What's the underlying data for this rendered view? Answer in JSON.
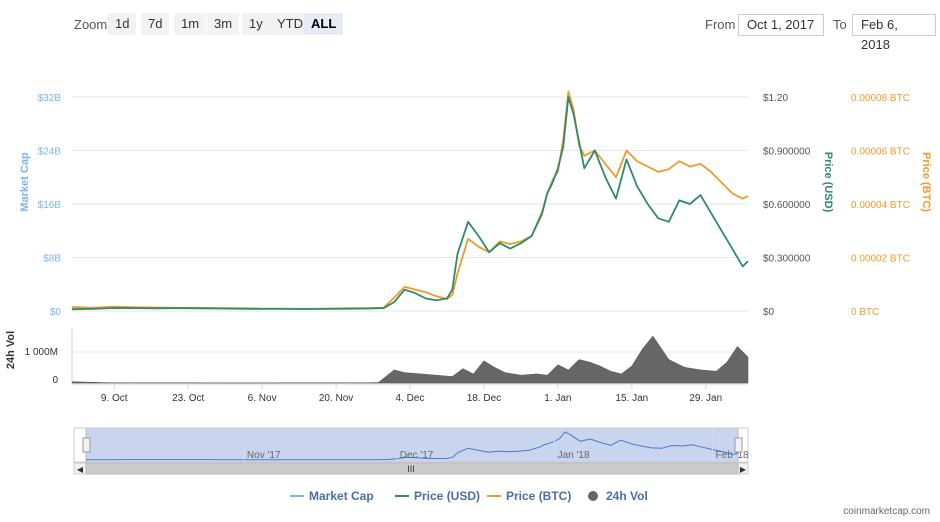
{
  "toolbar": {
    "zoom_label": "Zoom",
    "zoom_buttons": [
      "1d",
      "7d",
      "1m",
      "3m",
      "1y",
      "YTD",
      "ALL"
    ],
    "active_zoom": "ALL",
    "from_label": "From",
    "from_value": "Oct 1, 2017",
    "to_label": "To",
    "to_value": "Feb 6, 2018"
  },
  "credit": "coinmarketcap.com",
  "colors": {
    "market_cap": "#7cb5ec",
    "price_usd": "#2f8a6b",
    "price_btc": "#f09a2a",
    "volume": "#666666",
    "navigator_fill": "#c9d5ee"
  },
  "chart_data": {
    "type": "line",
    "x_range": [
      "2017-10-01",
      "2018-02-06"
    ],
    "x_tick_labels": [
      "9. Oct",
      "23. Oct",
      "6. Nov",
      "20. Nov",
      "4. Dec",
      "18. Dec",
      "1. Jan",
      "15. Jan",
      "29. Jan"
    ],
    "x_tick_dates": [
      "2017-10-09",
      "2017-10-23",
      "2017-11-06",
      "2017-11-20",
      "2017-12-04",
      "2017-12-18",
      "2018-01-01",
      "2018-01-15",
      "2018-01-29"
    ],
    "axes": {
      "market_cap": {
        "label": "Market Cap",
        "ticks": [
          "$0",
          "$8B",
          "$16B",
          "$24B",
          "$32B"
        ],
        "range": [
          0,
          32000000000
        ]
      },
      "price_usd": {
        "label": "Price (USD)",
        "ticks": [
          "$0",
          "$0.300000",
          "$0.600000",
          "$0.900000",
          "$1.20"
        ],
        "range": [
          0,
          1.2
        ]
      },
      "price_btc": {
        "label": "Price (BTC)",
        "ticks": [
          "0 BTC",
          "0.00002 BTC",
          "0.00004 BTC",
          "0.00006 BTC",
          "0.00008 BTC"
        ],
        "range": [
          0,
          8e-05
        ]
      },
      "volume": {
        "label": "24h Vol",
        "ticks": [
          "0",
          "1 000M"
        ],
        "range": [
          0,
          2000000000
        ]
      }
    },
    "series": [
      {
        "name": "Price (USD)",
        "axis": "price_usd",
        "x": [
          "2017-10-01",
          "2017-10-05",
          "2017-10-09",
          "2017-10-13",
          "2017-10-17",
          "2017-10-21",
          "2017-10-25",
          "2017-10-29",
          "2017-11-02",
          "2017-11-06",
          "2017-11-10",
          "2017-11-14",
          "2017-11-18",
          "2017-11-22",
          "2017-11-26",
          "2017-11-29",
          "2017-12-01",
          "2017-12-03",
          "2017-12-05",
          "2017-12-07",
          "2017-12-09",
          "2017-12-11",
          "2017-12-12",
          "2017-12-13",
          "2017-12-15",
          "2017-12-17",
          "2017-12-19",
          "2017-12-21",
          "2017-12-23",
          "2017-12-25",
          "2017-12-27",
          "2017-12-29",
          "2017-12-30",
          "2017-12-31",
          "2018-01-01",
          "2018-01-02",
          "2018-01-03",
          "2018-01-04",
          "2018-01-05",
          "2018-01-06",
          "2018-01-08",
          "2018-01-10",
          "2018-01-12",
          "2018-01-14",
          "2018-01-16",
          "2018-01-18",
          "2018-01-20",
          "2018-01-22",
          "2018-01-24",
          "2018-01-26",
          "2018-01-28",
          "2018-01-30",
          "2018-02-01",
          "2018-02-03",
          "2018-02-05",
          "2018-02-06"
        ],
        "values": [
          0.01,
          0.012,
          0.017,
          0.016,
          0.015,
          0.016,
          0.015,
          0.014,
          0.013,
          0.012,
          0.012,
          0.011,
          0.012,
          0.013,
          0.014,
          0.016,
          0.05,
          0.12,
          0.1,
          0.07,
          0.06,
          0.07,
          0.12,
          0.32,
          0.5,
          0.42,
          0.33,
          0.38,
          0.35,
          0.38,
          0.42,
          0.55,
          0.66,
          0.72,
          0.8,
          0.92,
          1.2,
          1.1,
          0.95,
          0.8,
          0.9,
          0.75,
          0.63,
          0.85,
          0.7,
          0.6,
          0.52,
          0.5,
          0.62,
          0.6,
          0.65,
          0.55,
          0.45,
          0.35,
          0.25,
          0.28
        ]
      },
      {
        "name": "Price (BTC)",
        "axis": "price_btc",
        "x": [
          "2017-10-01",
          "2017-10-05",
          "2017-10-09",
          "2017-10-13",
          "2017-10-17",
          "2017-10-21",
          "2017-10-25",
          "2017-10-29",
          "2017-11-02",
          "2017-11-06",
          "2017-11-10",
          "2017-11-14",
          "2017-11-18",
          "2017-11-22",
          "2017-11-26",
          "2017-11-29",
          "2017-12-01",
          "2017-12-03",
          "2017-12-05",
          "2017-12-07",
          "2017-12-09",
          "2017-12-11",
          "2017-12-12",
          "2017-12-13",
          "2017-12-15",
          "2017-12-17",
          "2017-12-19",
          "2017-12-21",
          "2017-12-23",
          "2017-12-25",
          "2017-12-27",
          "2017-12-29",
          "2017-12-30",
          "2017-12-31",
          "2018-01-01",
          "2018-01-02",
          "2018-01-03",
          "2018-01-04",
          "2018-01-05",
          "2018-01-06",
          "2018-01-08",
          "2018-01-10",
          "2018-01-12",
          "2018-01-14",
          "2018-01-16",
          "2018-01-18",
          "2018-01-20",
          "2018-01-22",
          "2018-01-24",
          "2018-01-26",
          "2018-01-28",
          "2018-01-30",
          "2018-02-01",
          "2018-02-03",
          "2018-02-05",
          "2018-02-06"
        ],
        "values": [
          1.5e-06,
          1.2e-06,
          1.6e-06,
          1.4e-06,
          1.3e-06,
          1.2e-06,
          1.2e-06,
          1.1e-06,
          1e-06,
          9e-07,
          9e-07,
          8e-07,
          9e-07,
          1e-06,
          1.1e-06,
          1.2e-06,
          5e-06,
          9e-06,
          8e-06,
          7e-06,
          5.5e-06,
          4.5e-06,
          6e-06,
          1.4e-05,
          2.7e-05,
          2.4e-05,
          2.2e-05,
          2.6e-05,
          2.5e-05,
          2.6e-05,
          2.8e-05,
          3.6e-05,
          4.4e-05,
          4.9e-05,
          5.2e-05,
          6.4e-05,
          8.2e-05,
          7.5e-05,
          6.2e-05,
          5.8e-05,
          6e-05,
          5.5e-05,
          5e-05,
          6e-05,
          5.6e-05,
          5.4e-05,
          5.2e-05,
          5.3e-05,
          5.6e-05,
          5.4e-05,
          5.5e-05,
          5.2e-05,
          4.8e-05,
          4.4e-05,
          4.2e-05,
          4.3e-05
        ]
      },
      {
        "name": "24h Vol",
        "axis": "volume",
        "type": "area",
        "x": [
          "2017-10-01",
          "2017-10-08",
          "2017-10-15",
          "2017-10-22",
          "2017-10-29",
          "2017-11-05",
          "2017-11-12",
          "2017-11-19",
          "2017-11-26",
          "2017-11-28",
          "2017-12-01",
          "2017-12-03",
          "2017-12-06",
          "2017-12-09",
          "2017-12-12",
          "2017-12-14",
          "2017-12-16",
          "2017-12-18",
          "2017-12-20",
          "2017-12-22",
          "2017-12-25",
          "2017-12-28",
          "2017-12-30",
          "2018-01-01",
          "2018-01-03",
          "2018-01-05",
          "2018-01-07",
          "2018-01-09",
          "2018-01-11",
          "2018-01-13",
          "2018-01-15",
          "2018-01-17",
          "2018-01-19",
          "2018-01-22",
          "2018-01-25",
          "2018-01-28",
          "2018-01-31",
          "2018-02-02",
          "2018-02-04",
          "2018-02-06"
        ],
        "values": [
          50000000,
          10000000,
          8000000,
          6000000,
          5000000,
          5000000,
          6000000,
          6000000,
          10000000,
          20000000,
          500000000,
          400000000,
          350000000,
          300000000,
          250000000,
          550000000,
          350000000,
          850000000,
          600000000,
          400000000,
          300000000,
          350000000,
          300000000,
          700000000,
          500000000,
          900000000,
          800000000,
          650000000,
          450000000,
          350000000,
          650000000,
          1300000000,
          1800000000,
          900000000,
          600000000,
          500000000,
          450000000,
          800000000,
          1400000000,
          1000000000
        ]
      }
    ],
    "legend": {
      "position": "bottom",
      "items": [
        "Market Cap",
        "Price (USD)",
        "Price (BTC)",
        "24h Vol"
      ]
    },
    "navigator": {
      "labels": [
        "Nov '17",
        "Dec '17",
        "Jan '18",
        "Feb '18"
      ],
      "label_dates": [
        "2017-11-01",
        "2017-12-01",
        "2018-01-01",
        "2018-02-01"
      ],
      "scrollbar_grip": "III"
    }
  }
}
